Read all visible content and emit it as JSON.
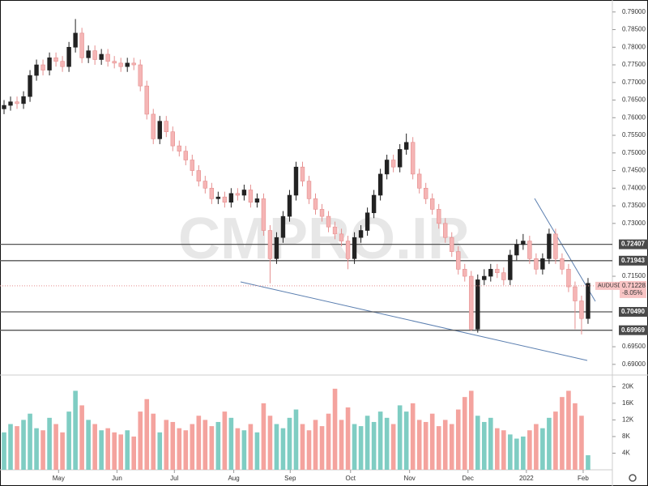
{
  "chart_data": [
    {
      "type": "candlestick",
      "watermark": "CMPRO.IR",
      "up_color": "#222222",
      "down_color": "#f5b5b5",
      "down_stroke": "#e58f8f",
      "xlim": [
        -0.625,
        93.75
      ],
      "xticks": [
        {
          "value": 8.4,
          "label": "May"
        },
        {
          "value": 17.4,
          "label": "Jun"
        },
        {
          "value": 26.25,
          "label": "Jul"
        },
        {
          "value": 35.4,
          "label": "Aug"
        },
        {
          "value": 44.1,
          "label": "Sep"
        },
        {
          "value": 53.4,
          "label": "Oct"
        },
        {
          "value": 62.5,
          "label": "Nov"
        },
        {
          "value": 71.5,
          "label": "Dec"
        },
        {
          "value": 80.5,
          "label": "2022"
        },
        {
          "value": 89.25,
          "label": "Feb"
        }
      ],
      "ylim": [
        0.6872,
        0.7934
      ],
      "yticks": [
        {
          "value": 0.79,
          "label": "0.79000"
        },
        {
          "value": 0.785,
          "label": "0.78500"
        },
        {
          "value": 0.78,
          "label": "0.78000"
        },
        {
          "value": 0.775,
          "label": "0.77500"
        },
        {
          "value": 0.77,
          "label": "0.77000"
        },
        {
          "value": 0.765,
          "label": "0.76500"
        },
        {
          "value": 0.76,
          "label": "0.76000"
        },
        {
          "value": 0.755,
          "label": "0.75500"
        },
        {
          "value": 0.75,
          "label": "0.75000"
        },
        {
          "value": 0.745,
          "label": "0.74500"
        },
        {
          "value": 0.74,
          "label": "0.74000"
        },
        {
          "value": 0.735,
          "label": "0.73500"
        },
        {
          "value": 0.73,
          "label": "0.73000"
        },
        {
          "value": 0.715,
          "label": "0.71500"
        },
        {
          "value": 0.695,
          "label": "0.69500"
        },
        {
          "value": 0.69,
          "label": "0.69000"
        }
      ],
      "levels": [
        0.72407,
        0.71943,
        {
          "value": 0.7049,
          "label": "0.70490"
        },
        0.69969
      ],
      "last_price": {
        "name": "AUDUSD",
        "value": 0.71228,
        "label": "0.71228",
        "change": {
          "value": -8.05,
          "label": "-8.05%"
        }
      },
      "open": [
        0.7625,
        0.7635,
        0.7645,
        0.764,
        0.766,
        0.772,
        0.775,
        0.7735,
        0.777,
        0.776,
        0.7745,
        0.78,
        0.784,
        0.777,
        0.779,
        0.7765,
        0.778,
        0.776,
        0.7755,
        0.7745,
        0.7755,
        0.775,
        0.769,
        0.761,
        0.754,
        0.759,
        0.756,
        0.752,
        0.7505,
        0.748,
        0.745,
        0.742,
        0.74,
        0.737,
        0.7375,
        0.736,
        0.7385,
        0.738,
        0.7395,
        0.736,
        0.737,
        0.728,
        0.72,
        0.726,
        0.732,
        0.738,
        0.746,
        0.742,
        0.737,
        0.734,
        0.732,
        0.729,
        0.727,
        0.725,
        0.72,
        0.726,
        0.728,
        0.733,
        0.738,
        0.744,
        0.748,
        0.746,
        0.751,
        0.753,
        0.744,
        0.74,
        0.737,
        0.734,
        0.73,
        0.726,
        0.722,
        0.717,
        0.715,
        0.7,
        0.714,
        0.715,
        0.717,
        0.716,
        0.714,
        0.721,
        0.724,
        0.725,
        0.72,
        0.717,
        0.72,
        0.727,
        0.72,
        0.717,
        0.712,
        0.708,
        0.703
      ],
      "high": [
        0.765,
        0.766,
        0.766,
        0.7675,
        0.7735,
        0.7765,
        0.7765,
        0.7785,
        0.7785,
        0.7775,
        0.7815,
        0.788,
        0.7855,
        0.7805,
        0.7805,
        0.7795,
        0.7795,
        0.7775,
        0.777,
        0.777,
        0.777,
        0.7765,
        0.7705,
        0.7625,
        0.7605,
        0.7605,
        0.7575,
        0.7535,
        0.752,
        0.7495,
        0.7465,
        0.7435,
        0.7415,
        0.739,
        0.739,
        0.74,
        0.74,
        0.741,
        0.741,
        0.7385,
        0.7385,
        0.7295,
        0.7275,
        0.7335,
        0.7395,
        0.7475,
        0.7475,
        0.7435,
        0.7385,
        0.7355,
        0.7335,
        0.7305,
        0.7285,
        0.7265,
        0.7275,
        0.7295,
        0.7345,
        0.7395,
        0.7455,
        0.7495,
        0.7495,
        0.7525,
        0.7555,
        0.7545,
        0.7455,
        0.7415,
        0.7385,
        0.7355,
        0.7315,
        0.7275,
        0.7235,
        0.7185,
        0.7165,
        0.7155,
        0.717,
        0.7185,
        0.7185,
        0.7175,
        0.7225,
        0.7255,
        0.727,
        0.7265,
        0.7215,
        0.7215,
        0.7285,
        0.7285,
        0.7215,
        0.7185,
        0.7135,
        0.7095,
        0.7145
      ],
      "low": [
        0.761,
        0.762,
        0.7625,
        0.7625,
        0.7645,
        0.7705,
        0.772,
        0.772,
        0.7745,
        0.773,
        0.773,
        0.7785,
        0.7755,
        0.7755,
        0.775,
        0.775,
        0.7745,
        0.774,
        0.773,
        0.773,
        0.7735,
        0.7675,
        0.7595,
        0.7525,
        0.7525,
        0.7545,
        0.7505,
        0.749,
        0.7465,
        0.7435,
        0.7405,
        0.7385,
        0.7355,
        0.7355,
        0.7345,
        0.7345,
        0.7365,
        0.7365,
        0.7345,
        0.7345,
        0.7265,
        0.713,
        0.7185,
        0.7245,
        0.7305,
        0.7365,
        0.7405,
        0.7355,
        0.7325,
        0.7305,
        0.7275,
        0.7255,
        0.7235,
        0.717,
        0.7185,
        0.7245,
        0.7265,
        0.7315,
        0.7365,
        0.7425,
        0.7445,
        0.7445,
        0.7495,
        0.7425,
        0.7385,
        0.7355,
        0.7325,
        0.7285,
        0.7245,
        0.7205,
        0.7155,
        0.7135,
        0.6995,
        0.699,
        0.7125,
        0.7135,
        0.7145,
        0.7125,
        0.7125,
        0.7195,
        0.7225,
        0.7185,
        0.7155,
        0.7155,
        0.7185,
        0.7185,
        0.7155,
        0.7105,
        0.7,
        0.6985,
        0.7015
      ],
      "close": [
        0.7635,
        0.7645,
        0.764,
        0.766,
        0.772,
        0.775,
        0.7735,
        0.777,
        0.776,
        0.7745,
        0.78,
        0.784,
        0.777,
        0.779,
        0.7765,
        0.778,
        0.776,
        0.7755,
        0.7745,
        0.7755,
        0.775,
        0.769,
        0.761,
        0.754,
        0.759,
        0.756,
        0.752,
        0.7505,
        0.748,
        0.745,
        0.742,
        0.74,
        0.737,
        0.7375,
        0.736,
        0.7385,
        0.738,
        0.7395,
        0.736,
        0.737,
        0.728,
        0.72,
        0.726,
        0.732,
        0.738,
        0.746,
        0.742,
        0.737,
        0.734,
        0.732,
        0.729,
        0.727,
        0.725,
        0.72,
        0.726,
        0.728,
        0.733,
        0.738,
        0.744,
        0.748,
        0.746,
        0.751,
        0.753,
        0.744,
        0.74,
        0.737,
        0.734,
        0.73,
        0.726,
        0.722,
        0.717,
        0.715,
        0.7,
        0.714,
        0.715,
        0.717,
        0.716,
        0.714,
        0.721,
        0.724,
        0.725,
        0.72,
        0.717,
        0.72,
        0.727,
        0.72,
        0.717,
        0.712,
        0.708,
        0.703,
        0.713
      ]
    },
    {
      "type": "volume",
      "up_color": "#7fcdc3",
      "down_color": "#f4a39e",
      "ylim": [
        0,
        22400
      ],
      "yticks": [
        {
          "value": 20000,
          "label": "20K"
        },
        {
          "value": 16000,
          "label": "16K"
        },
        {
          "value": 12000,
          "label": "12K"
        },
        {
          "value": 8000,
          "label": "8K"
        },
        {
          "value": 4000,
          "label": "4K"
        }
      ],
      "values": [
        9000,
        11000,
        10500,
        12000,
        13500,
        10000,
        9500,
        12500,
        11000,
        9000,
        14000,
        19000,
        15500,
        12000,
        11000,
        9500,
        10000,
        9000,
        8500,
        9500,
        8000,
        14000,
        17000,
        13500,
        9000,
        12000,
        11500,
        10000,
        9500,
        11000,
        13000,
        12000,
        10500,
        11500,
        14000,
        12500,
        10000,
        9500,
        11000,
        9000,
        16000,
        13000,
        11000,
        10000,
        12500,
        14500,
        11000,
        9500,
        12000,
        10500,
        13500,
        19500,
        12000,
        15000,
        11000,
        10500,
        13000,
        11500,
        14000,
        12500,
        11000,
        15500,
        14000,
        16000,
        12000,
        11500,
        13500,
        10500,
        12000,
        11000,
        14500,
        17500,
        19000,
        13000,
        11500,
        12500,
        10000,
        9500,
        8500,
        7500,
        8000,
        9500,
        11000,
        10000,
        12500,
        14000,
        17500,
        19000,
        16000,
        13000,
        3500
      ]
    }
  ]
}
